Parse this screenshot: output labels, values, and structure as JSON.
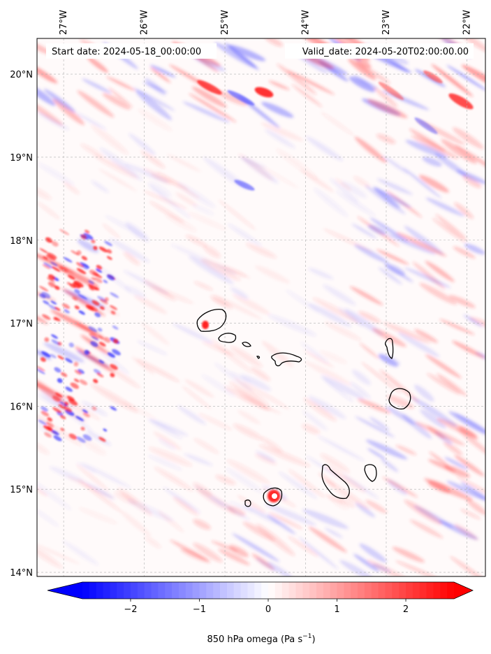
{
  "map": {
    "start_date_text": "Start date: 2024-05-18_00:00:00",
    "valid_date_text": "Valid_date: 2024-05-20T02:00:00.00",
    "lon_ticks": [
      {
        "lon": -27,
        "label": "27°W"
      },
      {
        "lon": -26,
        "label": "26°W"
      },
      {
        "lon": -25,
        "label": "25°W"
      },
      {
        "lon": -24,
        "label": "24°W"
      },
      {
        "lon": -23,
        "label": "23°W"
      },
      {
        "lon": -22,
        "label": "22°W"
      }
    ],
    "lat_ticks": [
      {
        "lat": 20,
        "label": "20°N"
      },
      {
        "lat": 19,
        "label": "19°N"
      },
      {
        "lat": 18,
        "label": "18°N"
      },
      {
        "lat": 17,
        "label": "17°N"
      },
      {
        "lat": 16,
        "label": "16°N"
      },
      {
        "lat": 15,
        "label": "15°N"
      },
      {
        "lat": 14,
        "label": "14°N"
      }
    ],
    "extent": {
      "lon_min": -27.33,
      "lon_max": -21.77,
      "lat_min": 13.95,
      "lat_max": 20.43
    },
    "field_colors": {
      "negative": "#0000ff",
      "zero": "#ffffff",
      "positive": "#ff0000"
    }
  },
  "colorbar": {
    "label_main": "850 hPa omega (Pa s",
    "label_sup": "−1",
    "label_end": ")",
    "range": [
      -2.7,
      2.7
    ],
    "ticks": [
      {
        "value": -2,
        "label": "−2"
      },
      {
        "value": -1,
        "label": "−1"
      },
      {
        "value": 0,
        "label": "0"
      },
      {
        "value": 1,
        "label": "1"
      },
      {
        "value": 2,
        "label": "2"
      }
    ]
  }
}
